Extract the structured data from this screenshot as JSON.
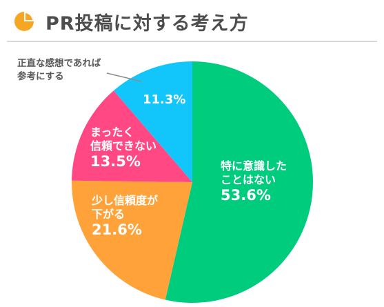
{
  "header": {
    "title": "PR投稿に対する考え方",
    "icon": "pie-chart-icon",
    "icon_color": "#f5a623"
  },
  "chart_data": {
    "type": "pie",
    "start_angle_deg": 0,
    "direction": "clockwise",
    "slices": [
      {
        "lines": [
          "特に意識した",
          "ことはない"
        ],
        "value": 53.6,
        "pct_label": "53.6%",
        "color": "#00cc7e",
        "text_color": "#ffffff",
        "label_placement": "inside"
      },
      {
        "lines": [
          "少し信頼度が",
          "下がる"
        ],
        "value": 21.6,
        "pct_label": "21.6%",
        "color": "#ffa23a",
        "text_color": "#ffffff",
        "label_placement": "inside"
      },
      {
        "lines": [
          "まったく",
          "信頼できない"
        ],
        "value": 13.5,
        "pct_label": "13.5%",
        "color": "#ff4884",
        "text_color": "#ffffff",
        "label_placement": "inside"
      },
      {
        "lines": [
          "正直な感想であれば",
          "参考にする"
        ],
        "value": 11.3,
        "pct_label": "11.3%",
        "color": "#12c6fb",
        "text_color": "#ffffff",
        "label_placement": "outside-with-leader",
        "outside_text_color": "#595959"
      }
    ]
  }
}
